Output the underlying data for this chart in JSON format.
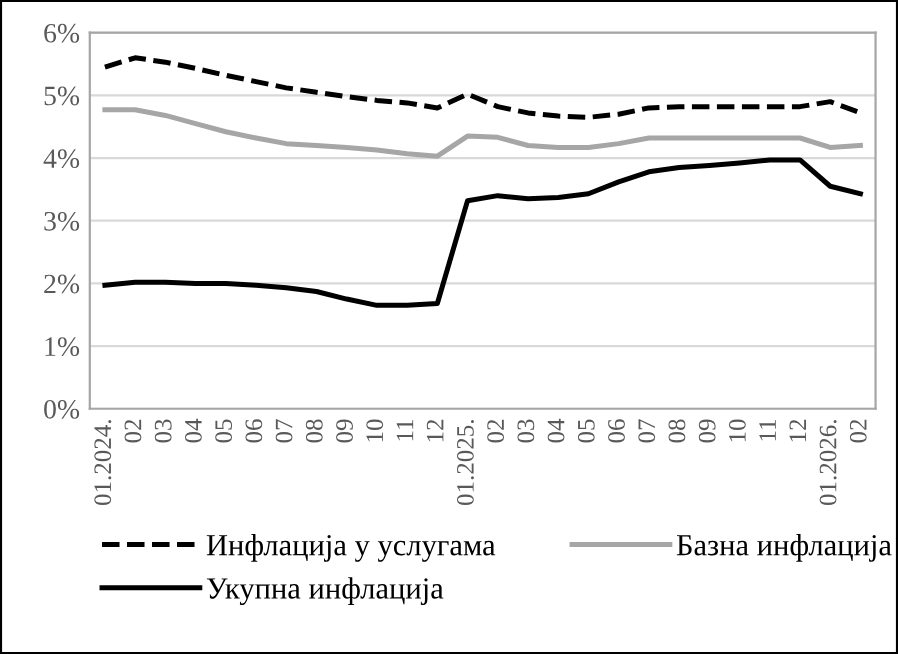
{
  "chart_data": {
    "type": "line",
    "categories": [
      "01.2024.",
      "02",
      "03",
      "04",
      "05",
      "06",
      "07",
      "08",
      "09",
      "10",
      "11",
      "12",
      "01.2025.",
      "02",
      "03",
      "04",
      "05",
      "06",
      "07",
      "08",
      "09",
      "10",
      "11",
      "12",
      "01.2026.",
      "02"
    ],
    "series": [
      {
        "name": "Инфлација у услугама",
        "color": "#000000",
        "line_style": "dashed",
        "values": [
          5.45,
          5.6,
          5.53,
          5.43,
          5.32,
          5.22,
          5.12,
          5.05,
          4.98,
          4.92,
          4.88,
          4.8,
          5.02,
          4.82,
          4.72,
          4.67,
          4.65,
          4.7,
          4.8,
          4.82,
          4.82,
          4.82,
          4.82,
          4.82,
          4.9,
          4.72
        ]
      },
      {
        "name": "Укупна инфлација",
        "color": "#000000",
        "line_style": "solid",
        "values": [
          1.97,
          2.02,
          2.02,
          2.0,
          2.0,
          1.97,
          1.93,
          1.87,
          1.75,
          1.65,
          1.65,
          1.68,
          3.32,
          3.4,
          3.35,
          3.37,
          3.43,
          3.62,
          3.78,
          3.85,
          3.88,
          3.92,
          3.97,
          3.97,
          3.55,
          3.43
        ]
      },
      {
        "name": "Базна инфлација",
        "color": "#a6a6a6",
        "line_style": "solid",
        "values": [
          4.77,
          4.77,
          4.68,
          4.55,
          4.42,
          4.32,
          4.23,
          4.2,
          4.17,
          4.13,
          4.07,
          4.03,
          4.35,
          4.33,
          4.2,
          4.17,
          4.17,
          4.23,
          4.32,
          4.32,
          4.32,
          4.32,
          4.32,
          4.32,
          4.17,
          4.2
        ]
      }
    ],
    "ylim": [
      0,
      6
    ],
    "yticks": [
      {
        "value": 0,
        "label": "0%"
      },
      {
        "value": 1,
        "label": "1%"
      },
      {
        "value": 2,
        "label": "2%"
      },
      {
        "value": 3,
        "label": "3%"
      },
      {
        "value": 4,
        "label": "4%"
      },
      {
        "value": 5,
        "label": "5%"
      },
      {
        "value": 6,
        "label": "6%"
      }
    ],
    "grid": "y",
    "legend": "bottom",
    "marker": "none"
  }
}
